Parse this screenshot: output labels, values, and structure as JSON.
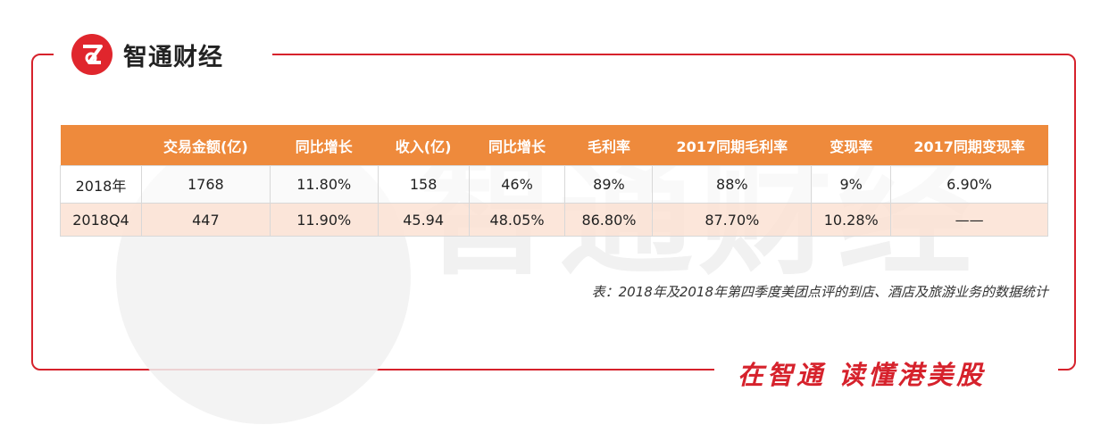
{
  "brand": {
    "name": "智通财经",
    "accent": "#d6222c",
    "header_color": "#ee8a3c",
    "highlight_row_color": "#fbe2d4"
  },
  "watermark": {
    "text": "智通财经"
  },
  "table": {
    "headers": [
      "",
      "交易金额(亿)",
      "同比增长",
      "收入(亿)",
      "同比增长",
      "毛利率",
      "2017同期毛利率",
      "变现率",
      "2017同期变现率"
    ],
    "rows": [
      [
        "2018年",
        "1768",
        "11.80%",
        "158",
        "46%",
        "89%",
        "88%",
        "9%",
        "6.90%"
      ],
      [
        "2018Q4",
        "447",
        "11.90%",
        "45.94",
        "48.05%",
        "86.80%",
        "87.70%",
        "10.28%",
        "——"
      ]
    ]
  },
  "caption": "表：2018年及2018年第四季度美团点评的到店、酒店及旅游业务的数据统计",
  "slogan": "在智通 读懂港美股"
}
